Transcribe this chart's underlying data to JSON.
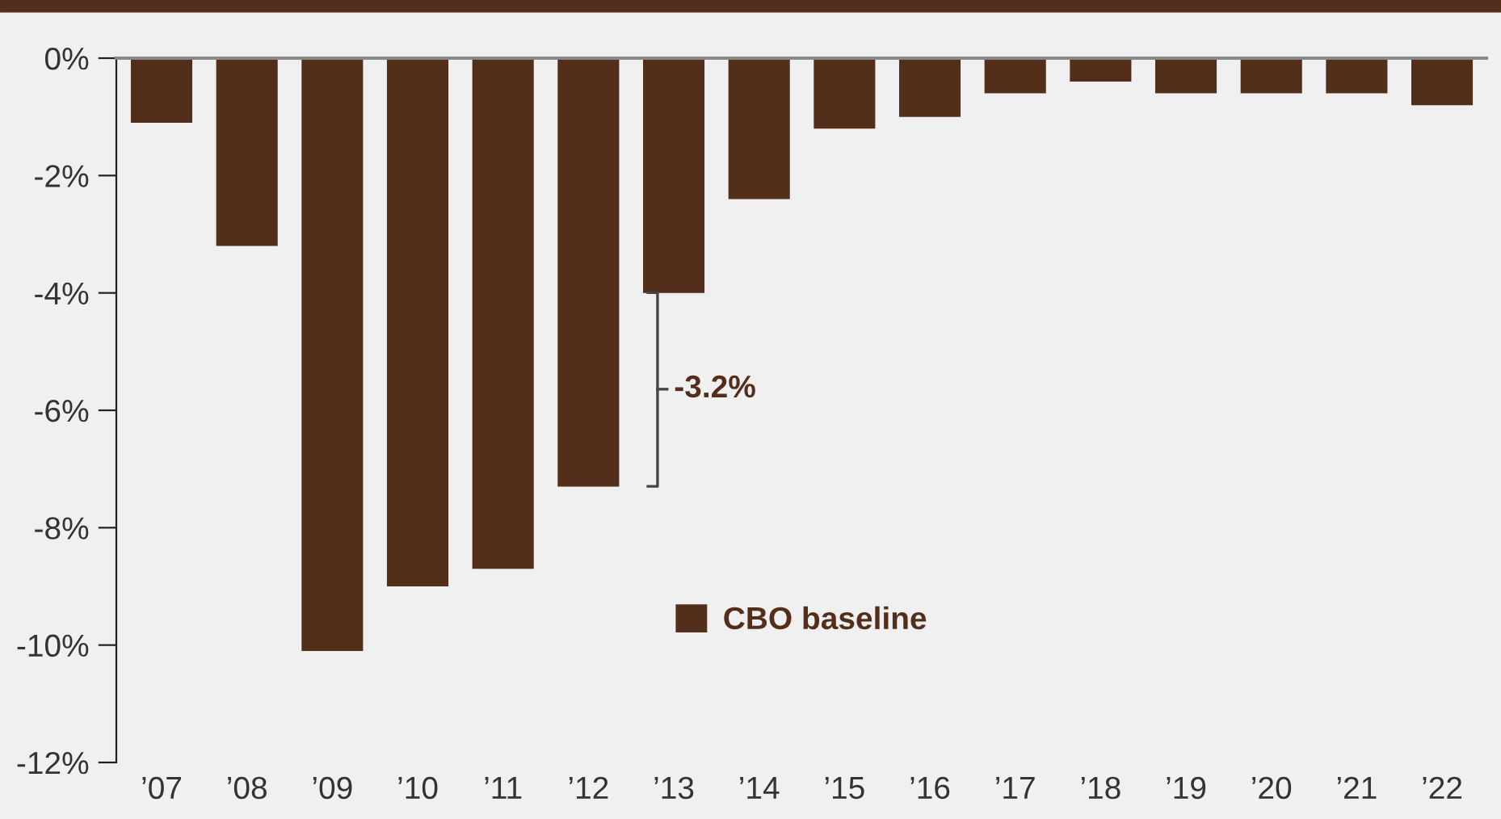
{
  "chart_data": {
    "type": "bar",
    "categories": [
      "’07",
      "’08",
      "’09",
      "’10",
      "’11",
      "’12",
      "’13",
      "’14",
      "’15",
      "’16",
      "’17",
      "’18",
      "’19",
      "’20",
      "’21",
      "’22"
    ],
    "series": [
      {
        "name": "CBO baseline",
        "color": "#532e1a",
        "values": [
          -1.1,
          -3.2,
          -10.1,
          -9.0,
          -8.7,
          -7.3,
          -4.0,
          -2.4,
          -1.2,
          -1.0,
          -0.6,
          -0.4,
          -0.6,
          -0.6,
          -0.6,
          -0.8
        ]
      }
    ],
    "ylim": [
      -12,
      0
    ],
    "yticks": [
      {
        "value": 0,
        "label": "0%"
      },
      {
        "value": -2,
        "label": "-2%"
      },
      {
        "value": -4,
        "label": "-4%"
      },
      {
        "value": -6,
        "label": "-6%"
      },
      {
        "value": -8,
        "label": "-8%"
      },
      {
        "value": -10,
        "label": "-10%"
      },
      {
        "value": -12,
        "label": "-12%"
      }
    ],
    "annotations": [
      "-3.2%"
    ],
    "legend": "bottom",
    "grid": false
  }
}
